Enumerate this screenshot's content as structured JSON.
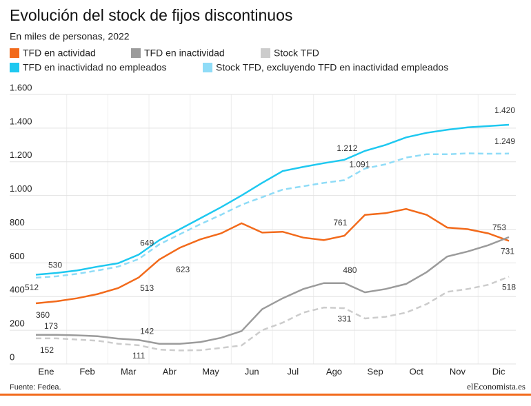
{
  "chart_data": {
    "type": "line",
    "title": "Evolución del stock de fijos discontinuos",
    "subtitle": "En miles de personas, 2022",
    "source": "Fuente: Fedea.",
    "brand": "elEconomista.es",
    "categories": [
      "Ene",
      null,
      "Feb",
      null,
      "Mar",
      null,
      "Abr",
      null,
      "May",
      null,
      "Jun",
      null,
      "Jul",
      null,
      "Ago",
      null,
      "Sep",
      null,
      "Oct",
      null,
      "Nov",
      null,
      "Dic",
      null
    ],
    "ylim": [
      0,
      1600
    ],
    "yticks": [
      0,
      200,
      400,
      600,
      800,
      {
        "value": 1000,
        "label": "1.000"
      },
      {
        "value": 1200,
        "label": "1.200"
      },
      {
        "value": 1400,
        "label": "1.400"
      },
      {
        "value": 1600,
        "label": "1.600"
      }
    ],
    "grid": true,
    "series": [
      {
        "name": "TFD en actividad",
        "color": "#f26a1b",
        "dashed": false,
        "values": [
          360,
          372,
          390,
          415,
          450,
          513,
          620,
          690,
          740,
          775,
          835,
          780,
          785,
          750,
          735,
          761,
          885,
          895,
          920,
          885,
          810,
          800,
          775,
          731
        ],
        "value_labels": [
          "360",
          null,
          null,
          null,
          null,
          "513",
          null,
          null,
          null,
          null,
          null,
          null,
          null,
          null,
          null,
          "761",
          null,
          null,
          null,
          null,
          null,
          null,
          null,
          "731"
        ]
      },
      {
        "name": "TFD en inactividad",
        "color": "#9b9b9b",
        "dashed": false,
        "values": [
          173,
          173,
          170,
          165,
          150,
          142,
          120,
          120,
          130,
          155,
          195,
          325,
          390,
          445,
          480,
          480,
          425,
          445,
          475,
          545,
          638,
          668,
          705,
          753
        ],
        "value_labels": [
          "173",
          null,
          null,
          null,
          null,
          "142",
          null,
          null,
          null,
          null,
          null,
          null,
          null,
          null,
          null,
          "480",
          null,
          null,
          null,
          null,
          null,
          null,
          null,
          "753"
        ]
      },
      {
        "name": "Stock TFD",
        "color": "#cccccc",
        "dashed": true,
        "values": [
          152,
          152,
          145,
          138,
          120,
          111,
          85,
          80,
          82,
          95,
          110,
          200,
          245,
          305,
          335,
          331,
          270,
          280,
          305,
          355,
          428,
          445,
          470,
          518
        ],
        "value_labels": [
          "152",
          null,
          null,
          null,
          null,
          "111",
          null,
          null,
          null,
          null,
          null,
          null,
          null,
          null,
          null,
          "331",
          null,
          null,
          null,
          null,
          null,
          null,
          null,
          "518"
        ]
      },
      {
        "name": "TFD en inactividad no empleados",
        "color": "#1ec8f0",
        "dashed": false,
        "values": [
          530,
          540,
          555,
          578,
          598,
          649,
          735,
          800,
          865,
          930,
          1000,
          1075,
          1145,
          1170,
          1192,
          1212,
          1265,
          1300,
          1345,
          1372,
          1390,
          1405,
          1412,
          1420
        ],
        "value_labels": [
          "530",
          null,
          null,
          null,
          null,
          "649",
          null,
          null,
          null,
          null,
          null,
          null,
          null,
          null,
          null,
          "1.212",
          null,
          null,
          null,
          null,
          null,
          null,
          null,
          "1.420"
        ]
      },
      {
        "name": "Stock TFD, excluyendo TFD en inactividad empleados",
        "color": "#8fdcf7",
        "dashed": true,
        "values": [
          512,
          520,
          535,
          555,
          578,
          623,
          710,
          770,
          830,
          885,
          945,
          990,
          1035,
          1055,
          1075,
          1091,
          1160,
          1185,
          1225,
          1245,
          1245,
          1250,
          1248,
          1249
        ],
        "value_labels": [
          "512",
          null,
          null,
          null,
          null,
          "623",
          null,
          null,
          null,
          null,
          null,
          null,
          null,
          null,
          null,
          "1.091",
          null,
          null,
          null,
          null,
          null,
          null,
          null,
          "1.249"
        ]
      }
    ]
  }
}
